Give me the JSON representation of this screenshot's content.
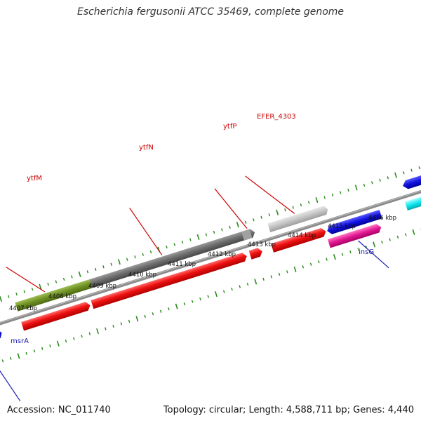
{
  "title": "Escherichia fergusonii ATCC 35469, complete genome",
  "footer": {
    "accession": "Accession: NC_011740",
    "info": "Topology: circular; Length: 4,588,711 bp; Genes: 4,440"
  },
  "ticks": [
    "4407 kbp",
    "4408 kbp",
    "4409 kbp",
    "4410 kbp",
    "4411 kbp",
    "4412 kbp",
    "4413 kbp",
    "4414 kbp",
    "4415 kbp",
    "4416 kbp"
  ],
  "genes": {
    "ytfM": "ytfM",
    "ytfN": "ytfN",
    "ytfP": "ytfP",
    "efer4303": "EFER_4303",
    "insG": "insG",
    "msrA": "msrA"
  },
  "colors": {
    "label_upper": "#cc0000",
    "label_lower": "#1a1aaa",
    "red": "#ee1111",
    "olive": "#6e8f22",
    "gray": "#6b6b6b",
    "lightgray": "#c4c4c4",
    "blue": "#1111dd",
    "magenta": "#e01891",
    "cyan": "#11e8f0",
    "khaki": "#b6b26e",
    "tick": "#2a8a1a",
    "backbone": "#8a8a8a"
  }
}
